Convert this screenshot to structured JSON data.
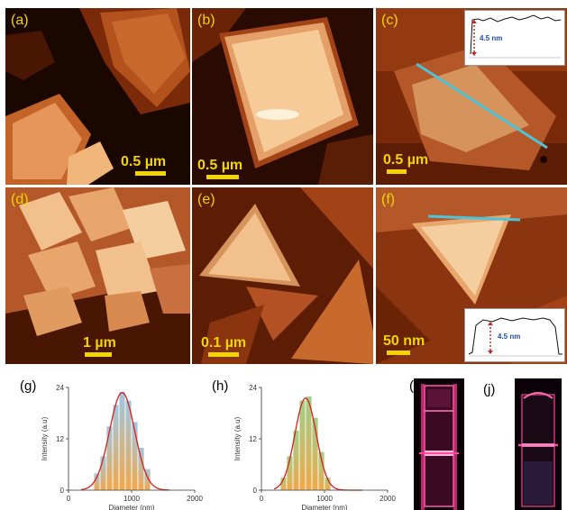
{
  "panels": {
    "a": {
      "label": "(a)",
      "scale": "0.5 µm"
    },
    "b": {
      "label": "(b)",
      "scale": "0.5 µm"
    },
    "c": {
      "label": "(c)",
      "scale": "0.5 µm",
      "inset_value": "4.5 nm"
    },
    "d": {
      "label": "(d)",
      "scale": "1 µm"
    },
    "e": {
      "label": "(e)",
      "scale": "0.1 µm"
    },
    "f": {
      "label": "(f)",
      "scale": "50 nm",
      "inset_value": "4.5 nm"
    },
    "g": {
      "label": "(g)"
    },
    "h": {
      "label": "(h)"
    },
    "i": {
      "label": "(i)"
    },
    "j": {
      "label": "(j)"
    }
  },
  "colors": {
    "label_yellow": "#f2d400",
    "afm_dark": "#1e0800",
    "afm_bright": "#f8d7a8",
    "fit_red": "#d62020",
    "profile_line": "#4fc3d9",
    "inset_arrow": "#d62020",
    "inset_text": "#1f4fa8"
  },
  "chart_data": [
    {
      "panel": "(g)",
      "type": "bar",
      "xlabel": "Diameter (nm)",
      "ylabel": "Intensity (a.u)",
      "xlim": [
        0,
        2000
      ],
      "ylim": [
        0,
        24
      ],
      "xticks": [
        "0",
        "1000",
        "2000"
      ],
      "yticks": [
        "0",
        "12",
        "24"
      ],
      "bin_width": 100,
      "x": [
        450,
        550,
        650,
        750,
        850,
        950,
        1050,
        1150,
        1250
      ],
      "values": [
        4,
        8,
        15,
        20,
        23,
        21,
        16,
        10,
        5
      ],
      "fit": "gaussian",
      "fit_center": 850,
      "fit_peak": 22.8,
      "fit_sigma": 200
    },
    {
      "panel": "(h)",
      "type": "bar",
      "xlabel": "Diameter (nm)",
      "ylabel": "Intensity (a.u)",
      "xlim": [
        0,
        2000
      ],
      "ylim": [
        0,
        24
      ],
      "xticks": [
        "0",
        "1000",
        "2000"
      ],
      "yticks": [
        "0",
        "12",
        "24"
      ],
      "bin_width": 100,
      "x": [
        350,
        450,
        550,
        650,
        750,
        850,
        950,
        1050
      ],
      "values": [
        3,
        8,
        14,
        21,
        22,
        17,
        9,
        3
      ],
      "fit": "gaussian",
      "fit_center": 700,
      "fit_peak": 21.5,
      "fit_sigma": 170
    }
  ]
}
